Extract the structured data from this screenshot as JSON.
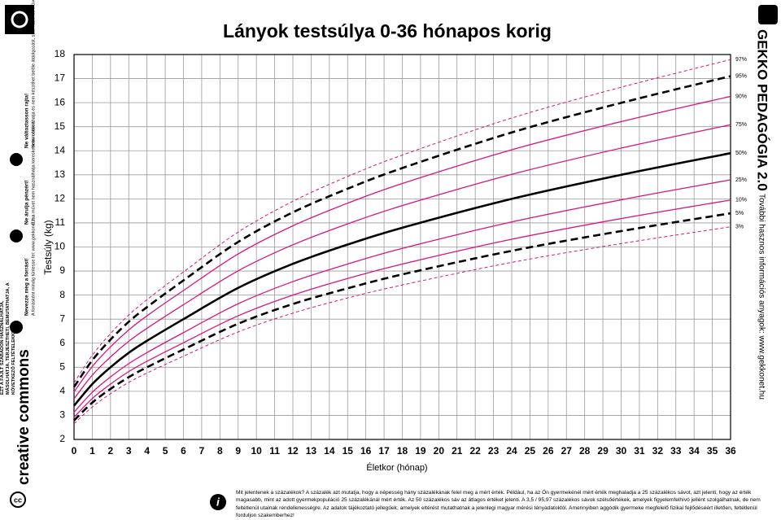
{
  "chart_data": {
    "type": "line",
    "title": "Lányok testsúlya 0-36 hónapos korig",
    "x_label": "Életkor (hónap)",
    "y_label": "Testsúly (kg)",
    "x": [
      0,
      1,
      2,
      3,
      4,
      6,
      9,
      12,
      15,
      18,
      24,
      30,
      36
    ],
    "xlim": [
      0,
      36
    ],
    "xticks": [
      0,
      1,
      2,
      3,
      4,
      5,
      6,
      7,
      8,
      9,
      10,
      11,
      12,
      13,
      14,
      15,
      16,
      17,
      18,
      19,
      20,
      21,
      22,
      23,
      24,
      25,
      26,
      27,
      28,
      29,
      30,
      31,
      32,
      33,
      34,
      35,
      36
    ],
    "ylim": [
      2,
      18
    ],
    "yticks": [
      2,
      3,
      4,
      5,
      6,
      7,
      8,
      9,
      10,
      11,
      12,
      13,
      14,
      15,
      16,
      17,
      18
    ],
    "grid": true,
    "legend": "line-end",
    "series": [
      {
        "name": "97%",
        "color": "#d6167f",
        "style": "dashed",
        "width": 1,
        "values": [
          4.35,
          5.5,
          6.4,
          7.17,
          7.81,
          8.96,
          10.62,
          11.9,
          12.93,
          13.82,
          15.36,
          16.64,
          17.79
        ]
      },
      {
        "name": "95%",
        "color": "#000000",
        "style": "dashed",
        "width": 2.6,
        "values": [
          4.18,
          5.29,
          6.15,
          6.89,
          7.5,
          8.61,
          10.21,
          11.44,
          12.42,
          13.28,
          14.76,
          15.99,
          17.1
        ]
      },
      {
        "name": "90%",
        "color": "#d6167f",
        "style": "solid",
        "width": 1.3,
        "values": [
          3.98,
          5.03,
          5.85,
          6.55,
          7.14,
          8.19,
          9.71,
          10.88,
          11.82,
          12.64,
          14.04,
          15.21,
          16.26
        ]
      },
      {
        "name": "75%",
        "color": "#d6167f",
        "style": "solid",
        "width": 1.3,
        "values": [
          3.69,
          4.67,
          5.43,
          6.08,
          6.62,
          7.6,
          9.01,
          10.09,
          10.96,
          11.72,
          13.02,
          14.11,
          15.08
        ]
      },
      {
        "name": "50%",
        "color": "#000000",
        "style": "solid",
        "width": 2.6,
        "values": [
          3.4,
          4.3,
          5.0,
          5.6,
          6.1,
          7.0,
          8.3,
          9.3,
          10.1,
          10.8,
          12.0,
          13.0,
          13.9
        ]
      },
      {
        "name": "25%",
        "color": "#d6167f",
        "style": "solid",
        "width": 1.3,
        "values": [
          3.13,
          3.96,
          4.6,
          5.15,
          5.61,
          6.44,
          7.64,
          8.56,
          9.29,
          9.94,
          11.04,
          11.96,
          12.79
        ]
      },
      {
        "name": "10%",
        "color": "#d6167f",
        "style": "solid",
        "width": 1.3,
        "values": [
          2.92,
          3.7,
          4.3,
          4.82,
          5.25,
          6.02,
          7.14,
          8.0,
          8.69,
          9.29,
          10.32,
          11.18,
          11.95
        ]
      },
      {
        "name": "5%",
        "color": "#000000",
        "style": "dashed",
        "width": 2.6,
        "values": [
          2.79,
          3.53,
          4.1,
          4.59,
          5.0,
          5.74,
          6.81,
          7.63,
          8.28,
          8.86,
          9.84,
          10.66,
          11.4
        ]
      },
      {
        "name": "3%",
        "color": "#d6167f",
        "style": "dashed",
        "width": 1,
        "values": [
          2.65,
          3.35,
          3.9,
          4.37,
          4.76,
          5.46,
          6.47,
          7.25,
          7.88,
          8.42,
          9.36,
          10.14,
          10.84
        ]
      }
    ]
  },
  "sidebar": {
    "license": "EZT A FÁJLT SZABADON HASZNÁLHATJA, MÁSOLHATJA, TERJESZTHETI, BEMUTATHATJA, A KÖVETKEZŐ FELTÉTELEKKEL:",
    "rules": [
      {
        "title": "Nevezze meg a forrást!",
        "text": "A forrásként mindig tüntesse fel: www.gekkonet.hu"
      },
      {
        "title": "Ne árulja pénzért!",
        "text": "Ezt a művet nem használhatja kereskedelmi célokra."
      },
      {
        "title": "Ne változtasson rajta!",
        "text": "Nem módosíthatja és nem készíthet belőle átdolgozást, származékos művet."
      }
    ],
    "logo": "creative commons"
  },
  "brand": {
    "name": "GEKKO PEDAGÓGIA 2.0",
    "tagline": "További hasznos információs anyagok: www.gekkonet.hu"
  },
  "info": {
    "question": "Mit jelentenek a százalékok?",
    "text": "A százalék azt mutatja, hogy a népesség hány százalékának felel meg a mért érték. Például, ha az Ön gyermekénél mért érték meghaladja a 25 százalékos sávot, azt jelenti, hogy az érték magasabb, mint az adott gyermekpopuláció 25 százalékánál mért érték. Az 50 százalékos sáv az átlagos értéket jelenti. A 3,5 / 95,97 százalékos sávok szélsőértékek, amelyek figyelemfelhívó jellént szolgálhatnak, de nem feltétlenül utalnak rendellenességre. Az adatok tájékoztató jellegűek, amelyek eltérést mutathatnak a jelenlegi magyar mérési tényadatoktól. Amennyiben aggódik gyermeke megfelelő fizikai fejlődéséért illetően, feltétlenül forduljon szakemberhez!"
  }
}
